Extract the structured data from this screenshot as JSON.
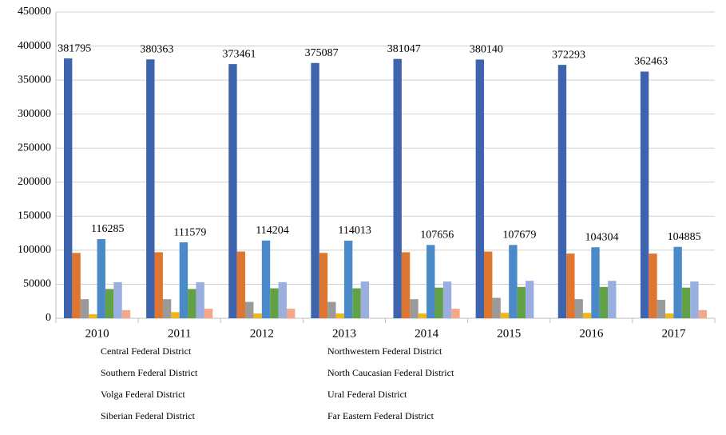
{
  "chart_data": {
    "type": "bar",
    "categories": [
      "2010",
      "2011",
      "2012",
      "2013",
      "2014",
      "2015",
      "2016",
      "2017"
    ],
    "ylim": [
      0,
      450000
    ],
    "yticks": [
      0,
      50000,
      100000,
      150000,
      200000,
      250000,
      300000,
      350000,
      400000,
      450000
    ],
    "grid": true,
    "legend": "bottom",
    "series": [
      {
        "name": "Central Federal District",
        "color": "#3d64ad",
        "data_labels": true,
        "values": [
          381795,
          380363,
          373461,
          375087,
          381047,
          380140,
          372293,
          362463
        ]
      },
      {
        "name": "Northwestern Federal District",
        "color": "#de7530",
        "values": [
          96000,
          97000,
          98000,
          96000,
          97000,
          98000,
          95000,
          95000
        ]
      },
      {
        "name": "Southern Federal District",
        "color": "#9a9a9a",
        "values": [
          28000,
          28000,
          24000,
          24000,
          28000,
          30000,
          28000,
          27000
        ]
      },
      {
        "name": "North Caucasian Federal District",
        "color": "#f0b71c",
        "values": [
          6000,
          9000,
          7000,
          7000,
          7000,
          8000,
          8000,
          7000
        ]
      },
      {
        "name": "Volga Federal District",
        "color": "#4a8ac8",
        "data_labels": true,
        "values": [
          116285,
          111579,
          114204,
          114013,
          107656,
          107679,
          104304,
          104885
        ]
      },
      {
        "name": "Ural Federal District",
        "color": "#62a145",
        "values": [
          43000,
          43000,
          44000,
          44000,
          45000,
          46000,
          46000,
          45000
        ]
      },
      {
        "name": "Siberian Federal District",
        "color": "#9aafdf",
        "values": [
          53000,
          53000,
          53000,
          54000,
          54000,
          55000,
          55000,
          54000
        ]
      },
      {
        "name": "Far Eastern Federal District",
        "color": "#f3a88a",
        "values": [
          12000,
          14000,
          14000,
          null,
          14000,
          null,
          null,
          12000
        ]
      }
    ]
  }
}
